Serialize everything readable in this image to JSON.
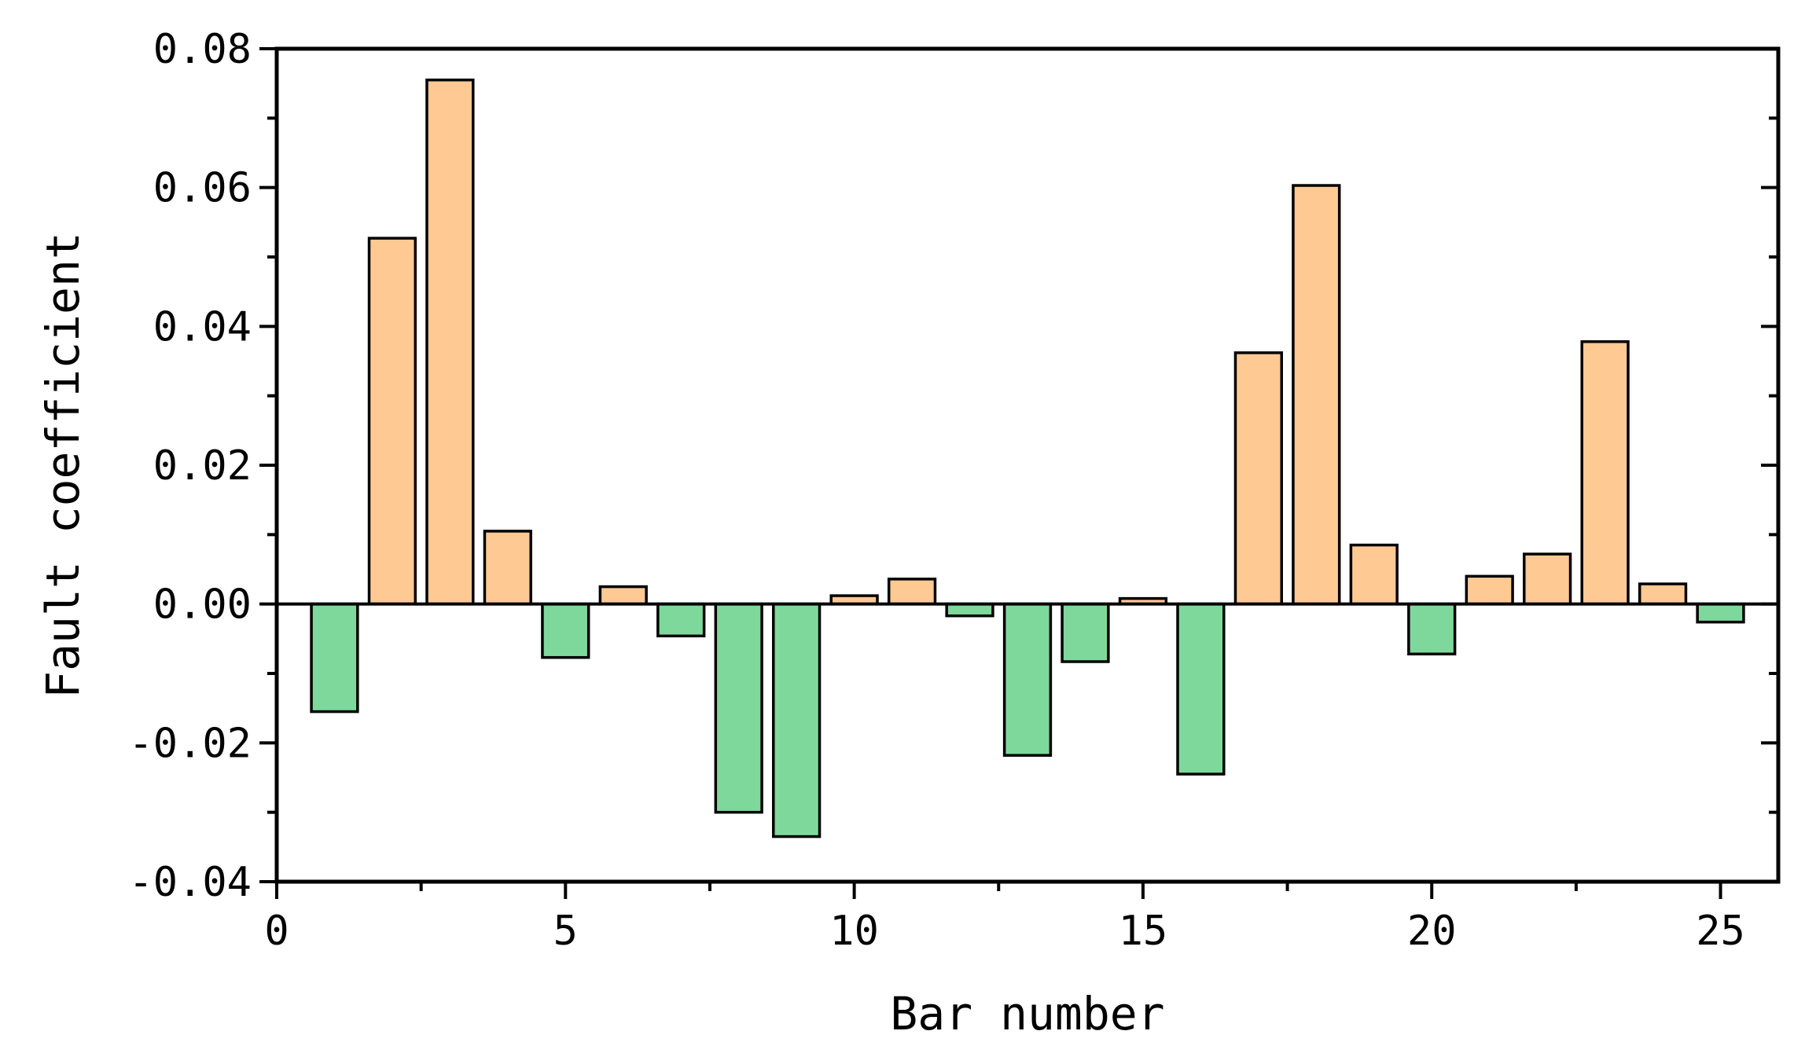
{
  "chart_data": {
    "type": "bar",
    "title": "",
    "xlabel": "Bar number",
    "ylabel": "Fault coefficient",
    "categories": [
      1,
      2,
      3,
      4,
      5,
      6,
      7,
      8,
      9,
      10,
      11,
      12,
      13,
      14,
      15,
      16,
      17,
      18,
      19,
      20,
      21,
      22,
      23,
      24,
      25
    ],
    "values": [
      -0.0155,
      0.0527,
      0.0755,
      0.0105,
      -0.0077,
      0.0025,
      -0.0046,
      -0.03,
      -0.0335,
      0.0012,
      0.0036,
      -0.0017,
      -0.0218,
      -0.0083,
      0.0008,
      -0.0245,
      0.0362,
      0.0603,
      0.0085,
      -0.0072,
      0.004,
      0.0072,
      0.0378,
      0.0029,
      -0.0026
    ],
    "xlim": [
      0,
      26
    ],
    "ylim": [
      -0.04,
      0.08
    ],
    "xticks": [
      0,
      5,
      10,
      15,
      20,
      25
    ],
    "xtick_labels": [
      "0",
      "5",
      "10",
      "15",
      "20",
      "25"
    ],
    "yticks": [
      -0.04,
      -0.02,
      0.0,
      0.02,
      0.04,
      0.06,
      0.08
    ],
    "ytick_labels": [
      "-0.04",
      "-0.02",
      "0.00",
      "0.02",
      "0.04",
      "0.06",
      "0.08"
    ],
    "grid": false,
    "colors": {
      "positive": "#FFC994",
      "negative": "#7FD89B",
      "edge": "#000000"
    }
  }
}
